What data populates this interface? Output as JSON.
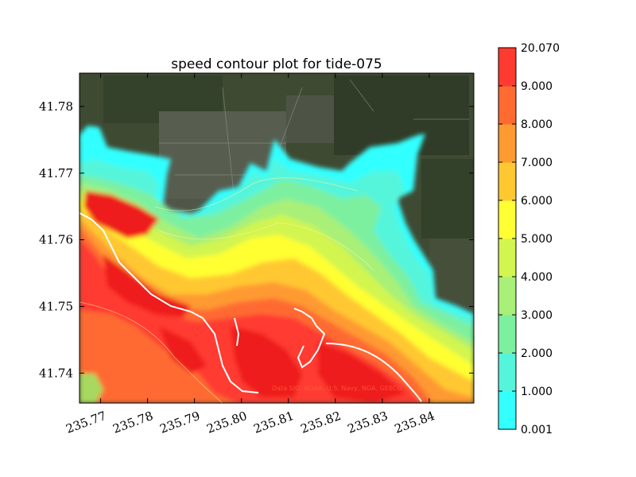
{
  "chart_data": {
    "type": "heatmap",
    "title": "speed contour plot for tide-075",
    "xlabel": "",
    "ylabel": "",
    "xlim": [
      235.7655,
      235.8495
    ],
    "ylim": [
      41.7355,
      41.785
    ],
    "x_ticks": [
      {
        "value": 235.77,
        "label": "235.77"
      },
      {
        "value": 235.78,
        "label": "235.78"
      },
      {
        "value": 235.79,
        "label": "235.79"
      },
      {
        "value": 235.8,
        "label": "235.80"
      },
      {
        "value": 235.81,
        "label": "235.81"
      },
      {
        "value": 235.82,
        "label": "235.82"
      },
      {
        "value": 235.83,
        "label": "235.83"
      },
      {
        "value": 235.84,
        "label": "235.84"
      }
    ],
    "y_ticks": [
      {
        "value": 41.74,
        "label": "41.74"
      },
      {
        "value": 41.75,
        "label": "41.75"
      },
      {
        "value": 41.76,
        "label": "41.76"
      },
      {
        "value": 41.77,
        "label": "41.77"
      },
      {
        "value": 41.78,
        "label": "41.78"
      }
    ],
    "colorbar": {
      "levels": [
        {
          "label": "0.001",
          "color": "#33ffff"
        },
        {
          "label": "1.000",
          "color": "#55f5dc"
        },
        {
          "label": "2.000",
          "color": "#7df0a0"
        },
        {
          "label": "3.000",
          "color": "#a8f078"
        },
        {
          "label": "4.000",
          "color": "#d2f550"
        },
        {
          "label": "5.000",
          "color": "#ffff33"
        },
        {
          "label": "6.000",
          "color": "#ffc830"
        },
        {
          "label": "7.000",
          "color": "#ff9a30"
        },
        {
          "label": "8.000",
          "color": "#ff6a30"
        },
        {
          "label": "9.000",
          "color": "#ff3a30"
        },
        {
          "label": "20.070",
          "color": "#ff2222"
        }
      ]
    },
    "attribution": "Data SIO, NOAA, U.S. Navy, NGA, GEBCO"
  }
}
